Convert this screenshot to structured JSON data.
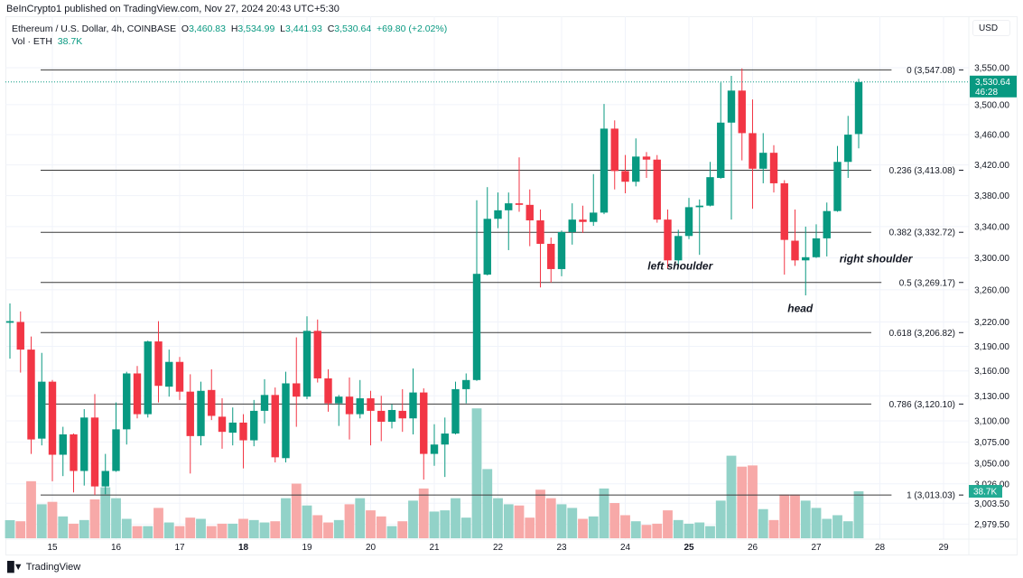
{
  "header": {
    "publisher_line": "BeInCrypto1 published on TradingView.com, Nov 27, 2024 20:43 UTC+5:30"
  },
  "legend": {
    "symbol": "Ethereum / U.S. Dollar, 4h, COINBASE",
    "o_label": "O",
    "o_value": "3,460.83",
    "h_label": "H",
    "h_value": "3,534.99",
    "l_label": "L",
    "l_value": "3,441.93",
    "c_label": "C",
    "c_value": "3,530.64",
    "change": "+69.80 (+2.02%)",
    "vol_label": "Vol · ETH",
    "vol_value": "38.7K"
  },
  "currency_button": "USD",
  "footer": {
    "brand": "TradingView",
    "brand_mark": "TV"
  },
  "colors": {
    "up": "#089981",
    "down": "#f23645",
    "vol_up": "#92d2c8",
    "vol_down": "#f7a9a8",
    "fib_line": "#3a3a3a",
    "grid": "#f0f3fa"
  },
  "chart_data": {
    "type": "candlestick",
    "interval": "4h",
    "yscale": "log",
    "grid": true,
    "columns": [
      "t",
      "open",
      "high",
      "low",
      "close",
      "volume_k"
    ],
    "candles": [
      [
        "2024-11-14T08:00",
        3219,
        3243,
        3175,
        3221,
        14.9
      ],
      [
        "2024-11-14T12:00",
        3220,
        3233,
        3158,
        3186,
        14
      ],
      [
        "2024-11-14T16:00",
        3186,
        3202,
        3061,
        3078,
        47
      ],
      [
        "2024-11-14T20:00",
        3079,
        3182,
        3071,
        3147,
        28
      ],
      [
        "2024-11-15T00:00",
        3147,
        3149,
        3029,
        3060,
        30
      ],
      [
        "2024-11-15T04:00",
        3060,
        3093,
        3035,
        3084,
        18
      ],
      [
        "2024-11-15T08:00",
        3084,
        3085,
        3016,
        3041,
        12
      ],
      [
        "2024-11-15T12:00",
        3041,
        3114,
        3024,
        3104,
        15
      ],
      [
        "2024-11-15T16:00",
        3104,
        3132,
        3013,
        3023,
        32
      ],
      [
        "2024-11-15T20:00",
        3023,
        3061,
        3014,
        3041,
        42
      ],
      [
        "2024-11-16T00:00",
        3041,
        3122,
        3040,
        3090,
        33
      ],
      [
        "2024-11-16T04:00",
        3090,
        3159,
        3072,
        3157,
        16
      ],
      [
        "2024-11-16T08:00",
        3157,
        3166,
        3103,
        3108,
        10
      ],
      [
        "2024-11-16T12:00",
        3108,
        3197,
        3104,
        3196,
        10
      ],
      [
        "2024-11-16T16:00",
        3196,
        3221,
        3122,
        3142,
        25
      ],
      [
        "2024-11-16T20:00",
        3141,
        3186,
        3129,
        3171,
        13
      ],
      [
        "2024-11-17T00:00",
        3171,
        3177,
        3125,
        3135,
        10
      ],
      [
        "2024-11-17T04:00",
        3135,
        3156,
        3038,
        3082,
        17
      ],
      [
        "2024-11-17T08:00",
        3082,
        3147,
        3071,
        3136,
        16
      ],
      [
        "2024-11-17T12:00",
        3137,
        3162,
        3101,
        3106,
        10
      ],
      [
        "2024-11-17T16:00",
        3105,
        3127,
        3067,
        3087,
        12
      ],
      [
        "2024-11-17T20:00",
        3086,
        3116,
        3071,
        3098,
        12
      ],
      [
        "2024-11-18T00:00",
        3098,
        3108,
        3044,
        3077,
        16
      ],
      [
        "2024-11-18T04:00",
        3077,
        3125,
        3070,
        3112,
        15
      ],
      [
        "2024-11-18T08:00",
        3112,
        3150,
        3097,
        3131,
        13
      ],
      [
        "2024-11-18T12:00",
        3131,
        3140,
        3051,
        3057,
        14
      ],
      [
        "2024-11-18T16:00",
        3056,
        3159,
        3051,
        3145,
        33
      ],
      [
        "2024-11-18T20:00",
        3145,
        3201,
        3093,
        3129,
        45
      ],
      [
        "2024-11-19T00:00",
        3129,
        3227,
        3126,
        3209,
        27
      ],
      [
        "2024-11-19T04:00",
        3209,
        3223,
        3146,
        3151,
        19
      ],
      [
        "2024-11-19T08:00",
        3151,
        3162,
        3111,
        3121,
        13
      ],
      [
        "2024-11-19T12:00",
        3121,
        3131,
        3094,
        3129,
        15
      ],
      [
        "2024-11-19T16:00",
        3129,
        3152,
        3078,
        3108,
        28
      ],
      [
        "2024-11-19T20:00",
        3108,
        3149,
        3103,
        3127,
        33
      ],
      [
        "2024-11-20T00:00",
        3127,
        3136,
        3071,
        3112,
        23
      ],
      [
        "2024-11-20T04:00",
        3112,
        3130,
        3076,
        3099,
        18
      ],
      [
        "2024-11-20T08:00",
        3099,
        3120,
        3091,
        3113,
        10
      ],
      [
        "2024-11-20T12:00",
        3112,
        3138,
        3087,
        3103,
        14
      ],
      [
        "2024-11-20T16:00",
        3103,
        3163,
        3084,
        3134,
        31
      ],
      [
        "2024-11-20T20:00",
        3134,
        3139,
        3031,
        3061,
        41
      ],
      [
        "2024-11-21T00:00",
        3061,
        3096,
        3047,
        3072,
        22
      ],
      [
        "2024-11-21T04:00",
        3072,
        3104,
        3034,
        3085,
        23
      ],
      [
        "2024-11-21T08:00",
        3085,
        3147,
        3084,
        3138,
        33
      ],
      [
        "2024-11-21T12:00",
        3138,
        3157,
        3121,
        3149,
        17
      ],
      [
        "2024-11-21T16:00",
        3149,
        3374,
        3148,
        3280,
        107
      ],
      [
        "2024-11-21T20:00",
        3279,
        3391,
        3278,
        3350,
        57
      ],
      [
        "2024-11-22T00:00",
        3350,
        3384,
        3338,
        3361,
        33
      ],
      [
        "2024-11-22T04:00",
        3361,
        3384,
        3310,
        3370,
        28
      ],
      [
        "2024-11-22T08:00",
        3370,
        3430,
        3359,
        3368,
        27
      ],
      [
        "2024-11-22T12:00",
        3368,
        3388,
        3315,
        3348,
        17
      ],
      [
        "2024-11-22T16:00",
        3348,
        3362,
        3263,
        3318,
        40
      ],
      [
        "2024-11-22T20:00",
        3318,
        3326,
        3269,
        3286,
        33
      ],
      [
        "2024-11-23T00:00",
        3286,
        3335,
        3277,
        3333,
        28
      ],
      [
        "2024-11-23T04:00",
        3333,
        3370,
        3317,
        3349,
        25
      ],
      [
        "2024-11-23T08:00",
        3349,
        3367,
        3332,
        3346,
        16
      ],
      [
        "2024-11-23T12:00",
        3346,
        3408,
        3341,
        3358,
        18
      ],
      [
        "2024-11-23T16:00",
        3358,
        3501,
        3356,
        3468,
        41
      ],
      [
        "2024-11-23T20:00",
        3468,
        3479,
        3388,
        3412,
        29
      ],
      [
        "2024-11-24T00:00",
        3412,
        3433,
        3383,
        3398,
        19
      ],
      [
        "2024-11-24T04:00",
        3398,
        3455,
        3392,
        3431,
        14
      ],
      [
        "2024-11-24T08:00",
        3431,
        3437,
        3403,
        3427,
        11
      ],
      [
        "2024-11-24T12:00",
        3427,
        3433,
        3345,
        3349,
        12
      ],
      [
        "2024-11-24T16:00",
        3349,
        3362,
        3287,
        3297,
        23
      ],
      [
        "2024-11-24T20:00",
        3297,
        3336,
        3289,
        3328,
        15
      ],
      [
        "2024-11-25T00:00",
        3328,
        3377,
        3324,
        3365,
        12
      ],
      [
        "2024-11-25T04:00",
        3365,
        3375,
        3304,
        3367,
        13
      ],
      [
        "2024-11-25T08:00",
        3367,
        3424,
        3366,
        3404,
        10
      ],
      [
        "2024-11-25T12:00",
        3403,
        3530,
        3402,
        3476,
        31
      ],
      [
        "2024-11-25T16:00",
        3476,
        3539,
        3349,
        3519,
        68
      ],
      [
        "2024-11-25T20:00",
        3519,
        3549,
        3426,
        3462,
        59
      ],
      [
        "2024-11-26T00:00",
        3462,
        3507,
        3363,
        3415,
        60
      ],
      [
        "2024-11-26T04:00",
        3415,
        3462,
        3396,
        3436,
        24
      ],
      [
        "2024-11-26T08:00",
        3436,
        3446,
        3384,
        3396,
        15
      ],
      [
        "2024-11-26T12:00",
        3396,
        3400,
        3279,
        3323,
        36
      ],
      [
        "2024-11-26T16:00",
        3322,
        3362,
        3290,
        3297,
        36
      ],
      [
        "2024-11-26T20:00",
        3297,
        3340,
        3253,
        3301,
        31
      ],
      [
        "2024-11-27T00:00",
        3301,
        3343,
        3300,
        3325,
        25
      ],
      [
        "2024-11-27T04:00",
        3325,
        3371,
        3302,
        3360,
        16
      ],
      [
        "2024-11-27T08:00",
        3360,
        3445,
        3359,
        3424,
        19
      ],
      [
        "2024-11-27T12:00",
        3424,
        3485,
        3403,
        3460,
        14
      ],
      [
        "2024-11-27T16:00",
        3460.83,
        3534.99,
        3441.93,
        3530.64,
        38.7
      ]
    ],
    "y_ticks": {
      "values": [
        3550,
        3500,
        3460,
        3420,
        3380,
        3340,
        3300,
        3260,
        3220,
        3190,
        3160,
        3130,
        3100,
        3075,
        3050,
        3026,
        3003.5,
        2979.5
      ],
      "labels": [
        "3,550.00",
        "3,500.00",
        "3,460.00",
        "3,420.00",
        "3,380.00",
        "3,340.00",
        "3,300.00",
        "3,260.00",
        "3,220.00",
        "3,190.00",
        "3,160.00",
        "3,130.00",
        "3,100.00",
        "3,075.00",
        "3,050.00",
        "3,026.00",
        "3,003.50",
        "2,979.50"
      ]
    },
    "x_ticks": [
      {
        "date": "2024-11-15",
        "label": "15",
        "bold": false
      },
      {
        "date": "2024-11-16",
        "label": "16",
        "bold": false
      },
      {
        "date": "2024-11-17",
        "label": "17",
        "bold": false
      },
      {
        "date": "2024-11-18",
        "label": "18",
        "bold": true
      },
      {
        "date": "2024-11-19",
        "label": "19",
        "bold": false
      },
      {
        "date": "2024-11-20",
        "label": "20",
        "bold": false
      },
      {
        "date": "2024-11-21",
        "label": "21",
        "bold": false
      },
      {
        "date": "2024-11-22",
        "label": "22",
        "bold": false
      },
      {
        "date": "2024-11-23",
        "label": "23",
        "bold": false
      },
      {
        "date": "2024-11-24",
        "label": "24",
        "bold": false
      },
      {
        "date": "2024-11-25",
        "label": "25",
        "bold": true
      },
      {
        "date": "2024-11-26",
        "label": "26",
        "bold": false
      },
      {
        "date": "2024-11-27",
        "label": "27",
        "bold": false
      },
      {
        "date": "2024-11-28",
        "label": "28",
        "bold": false
      },
      {
        "date": "2024-11-29",
        "label": "29",
        "bold": false
      }
    ],
    "fib_levels": [
      {
        "level": 0,
        "price": 3547.08,
        "label": "0 (3,547.08)"
      },
      {
        "level": 0.236,
        "price": 3413.08,
        "label": "0.236 (3,413.08)"
      },
      {
        "level": 0.382,
        "price": 3332.72,
        "label": "0.382 (3,332.72)"
      },
      {
        "level": 0.5,
        "price": 3269.17,
        "label": "0.5 (3,269.17)"
      },
      {
        "level": 0.618,
        "price": 3206.82,
        "label": "0.618 (3,206.82)"
      },
      {
        "level": 0.786,
        "price": 3120.1,
        "label": "0.786 (3,120.10)"
      },
      {
        "level": 1,
        "price": 3013.03,
        "label": "1 (3,013.03)"
      }
    ],
    "annotations": [
      {
        "text": "left shoulder",
        "date": "2024-11-24T20:00",
        "price": 3290
      },
      {
        "text": "head",
        "date": "2024-11-26T20:00",
        "price": 3237
      },
      {
        "text": "right shoulder",
        "date": "2024-11-27T04:00",
        "price": 3299
      }
    ],
    "last_price": {
      "value": 3530.64,
      "label": "3,530.64",
      "countdown": "46:28"
    },
    "last_volume": {
      "value": 38.7,
      "label": "38.7K"
    }
  }
}
